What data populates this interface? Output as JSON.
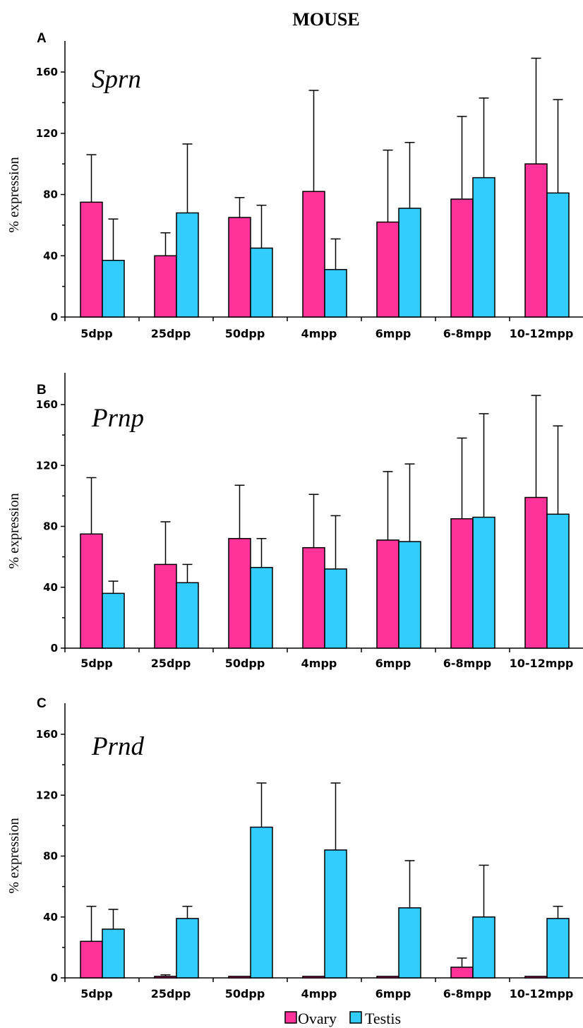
{
  "figure_title": "MOUSE",
  "colors": {
    "ovary": "#FF3399",
    "testis": "#33CCFF"
  },
  "legend": [
    {
      "label": "Ovary",
      "color": "#FF3399"
    },
    {
      "label": "Testis",
      "color": "#33CCFF"
    }
  ],
  "chart_data": [
    {
      "type": "bar",
      "panel": "A",
      "title": "Sprn",
      "ylabel": "% expression",
      "xlabel": "",
      "ylim": [
        0,
        180
      ],
      "yticks": [
        0,
        40,
        80,
        120,
        160
      ],
      "categories": [
        "5dpp",
        "25dpp",
        "50dpp",
        "4mpp",
        "6mpp",
        "6-8mpp",
        "10-12mpp"
      ],
      "series": [
        {
          "name": "Ovary",
          "values": [
            75,
            40,
            65,
            82,
            62,
            77,
            100
          ],
          "error": [
            31,
            15,
            13,
            66,
            47,
            54,
            69
          ]
        },
        {
          "name": "Testis",
          "values": [
            37,
            68,
            45,
            31,
            71,
            91,
            81
          ],
          "error": [
            27,
            45,
            28,
            20,
            43,
            52,
            61
          ]
        }
      ]
    },
    {
      "type": "bar",
      "panel": "B",
      "title": "Prnp",
      "ylabel": "% expression",
      "xlabel": "",
      "ylim": [
        0,
        180
      ],
      "yticks": [
        0,
        40,
        80,
        120,
        160
      ],
      "categories": [
        "5dpp",
        "25dpp",
        "50dpp",
        "4mpp",
        "6mpp",
        "6-8mpp",
        "10-12mpp"
      ],
      "series": [
        {
          "name": "Ovary",
          "values": [
            75,
            55,
            72,
            66,
            71,
            85,
            99
          ],
          "error": [
            37,
            28,
            35,
            35,
            45,
            53,
            67
          ]
        },
        {
          "name": "Testis",
          "values": [
            36,
            43,
            53,
            52,
            70,
            86,
            88
          ],
          "error": [
            8,
            12,
            19,
            35,
            51,
            68,
            58
          ]
        }
      ]
    },
    {
      "type": "bar",
      "panel": "C",
      "title": "Prnd",
      "ylabel": "% expression",
      "xlabel": "",
      "ylim": [
        0,
        180
      ],
      "yticks": [
        0,
        40,
        80,
        120,
        160
      ],
      "categories": [
        "5dpp",
        "25dpp",
        "50dpp",
        "4mpp",
        "6mpp",
        "6-8mpp",
        "10-12mpp"
      ],
      "series": [
        {
          "name": "Ovary",
          "values": [
            24,
            1,
            1,
            1,
            1,
            7,
            1
          ],
          "error": [
            23,
            1,
            0,
            0,
            0,
            6,
            0
          ]
        },
        {
          "name": "Testis",
          "values": [
            32,
            39,
            99,
            84,
            46,
            40,
            39
          ],
          "error": [
            13,
            8,
            29,
            44,
            31,
            34,
            8
          ]
        }
      ]
    }
  ]
}
